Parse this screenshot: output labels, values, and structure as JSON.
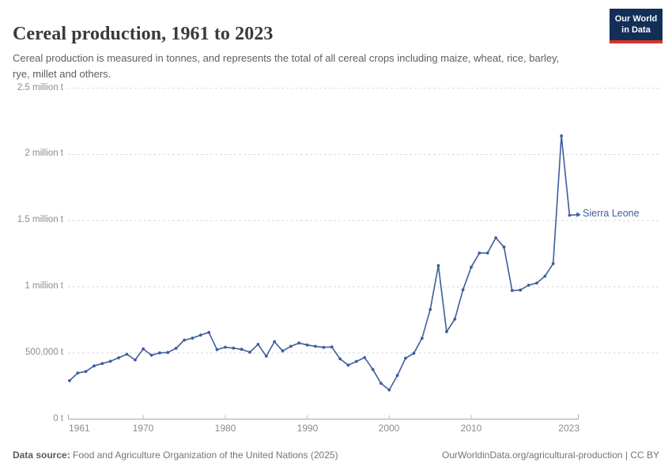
{
  "header": {
    "title": "Cereal production, 1961 to 2023",
    "subtitle": "Cereal production is measured in tonnes, and represents the total of all cereal crops including maize, wheat, rice, barley, rye, millet and others."
  },
  "logo": {
    "line1": "Our World",
    "line2": "in Data"
  },
  "footer": {
    "source_label": "Data source:",
    "source_text": " Food and Agriculture Organization of the United Nations (2025)",
    "link_text": "OurWorldinData.org/agricultural-production | CC BY"
  },
  "colors": {
    "line": "#3d5e9e",
    "grid": "#dadada",
    "axis": "#a3a3a3",
    "tick_text": "#8c8c8c",
    "logo_bg": "#122f58",
    "logo_red": "#dc3327"
  },
  "chart_data": {
    "type": "line",
    "title": "Cereal production, 1961 to 2023",
    "unit": "tonnes",
    "series_label": "Sierra Leone",
    "grid": "horizontal-dashed",
    "legend_position": "end-of-line",
    "xlim": [
      1961,
      2023
    ],
    "ylim": [
      0,
      2500000
    ],
    "x_tick_labels": [
      "1961",
      "1970",
      "1980",
      "1990",
      "2000",
      "2010",
      "2023"
    ],
    "x_ticks": [
      1961,
      1970,
      1980,
      1990,
      2000,
      2010,
      2023
    ],
    "y_ticks": [
      {
        "value": 0,
        "label": "0 t"
      },
      {
        "value": 500000,
        "label": "500,000 t"
      },
      {
        "value": 1000000,
        "label": "1 million t"
      },
      {
        "value": 1500000,
        "label": "1.5 million t"
      },
      {
        "value": 2000000,
        "label": "2 million t"
      },
      {
        "value": 2500000,
        "label": "2.5 million t"
      }
    ],
    "x": [
      1961,
      1962,
      1963,
      1964,
      1965,
      1966,
      1967,
      1968,
      1969,
      1970,
      1971,
      1972,
      1973,
      1974,
      1975,
      1976,
      1977,
      1978,
      1979,
      1980,
      1981,
      1982,
      1983,
      1984,
      1985,
      1986,
      1987,
      1988,
      1989,
      1990,
      1991,
      1992,
      1993,
      1994,
      1995,
      1996,
      1997,
      1998,
      1999,
      2000,
      2001,
      2002,
      2003,
      2004,
      2005,
      2006,
      2007,
      2008,
      2009,
      2010,
      2011,
      2012,
      2013,
      2014,
      2015,
      2016,
      2017,
      2018,
      2019,
      2020,
      2021,
      2022,
      2023
    ],
    "values": [
      290000,
      348000,
      360000,
      402000,
      420000,
      437000,
      463000,
      490000,
      447000,
      530000,
      483000,
      500000,
      503000,
      535000,
      597000,
      612000,
      635000,
      655000,
      525000,
      543000,
      536000,
      527000,
      505000,
      565000,
      475000,
      585000,
      515000,
      550000,
      575000,
      560000,
      550000,
      542000,
      545000,
      455000,
      408000,
      436000,
      465000,
      375000,
      270000,
      220000,
      330000,
      460000,
      497000,
      610000,
      828000,
      1160000,
      660000,
      755000,
      977000,
      1148000,
      1255000,
      1255000,
      1370000,
      1300000,
      971000,
      975000,
      1012000,
      1028000,
      1080000,
      1175000,
      2140000,
      1540000,
      1545000
    ],
    "line_color": "#3d5e9e"
  }
}
